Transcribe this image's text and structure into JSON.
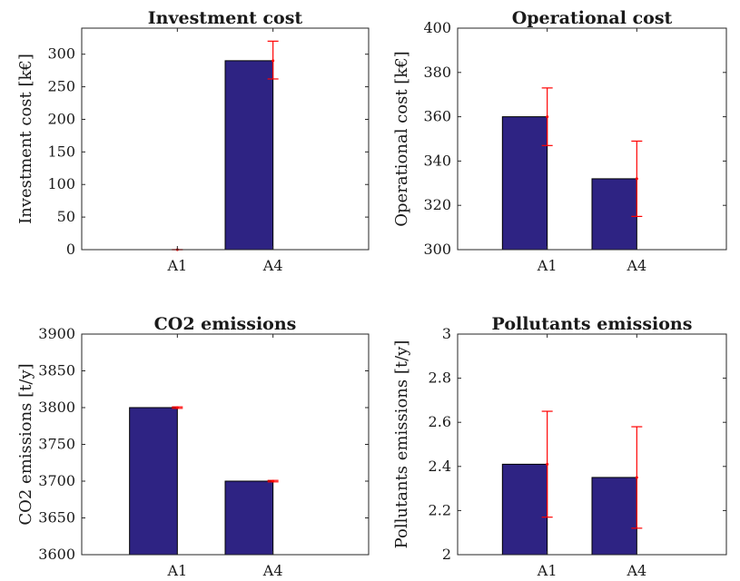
{
  "chart_data": [
    {
      "type": "bar",
      "title": "Investment cost",
      "ylabel": "Investment cost [k€]",
      "categories": [
        "A1",
        "A4"
      ],
      "values": [
        0,
        290
      ],
      "error_low": [
        0,
        262
      ],
      "error_high": [
        0,
        320
      ],
      "ylim": [
        0,
        340
      ],
      "yticks": [
        0,
        50,
        100,
        150,
        200,
        250,
        300
      ],
      "ytick_labels": [
        "0",
        "50",
        "100",
        "150",
        "200",
        "250",
        "300"
      ],
      "xlim": [
        0,
        3
      ],
      "grid": false
    },
    {
      "type": "bar",
      "title": "Operational cost",
      "ylabel": "Operational cost [k€]",
      "categories": [
        "A1",
        "A4"
      ],
      "values": [
        360,
        332
      ],
      "error_low": [
        347,
        315
      ],
      "error_high": [
        373,
        349
      ],
      "ylim": [
        300,
        400
      ],
      "yticks": [
        300,
        320,
        340,
        360,
        380,
        400
      ],
      "ytick_labels": [
        "300",
        "320",
        "340",
        "360",
        "380",
        "400"
      ],
      "xlim": [
        0,
        3
      ],
      "grid": false
    },
    {
      "type": "bar",
      "title": "CO2 emissions",
      "ylabel": "CO2 emissions [t/y]",
      "categories": [
        "A1",
        "A4"
      ],
      "values": [
        3800,
        3700
      ],
      "error_low": [
        3799,
        3699
      ],
      "error_high": [
        3801,
        3701
      ],
      "ylim": [
        3600,
        3900
      ],
      "yticks": [
        3600,
        3650,
        3700,
        3750,
        3800,
        3850,
        3900
      ],
      "ytick_labels": [
        "3600",
        "3650",
        "3700",
        "3750",
        "3800",
        "3850",
        "3900"
      ],
      "xlim": [
        0,
        3
      ],
      "grid": false
    },
    {
      "type": "bar",
      "title": "Pollutants emissions",
      "ylabel": "Pollutants emissions [t/y]",
      "categories": [
        "A1",
        "A4"
      ],
      "values": [
        2.41,
        2.35
      ],
      "error_low": [
        2.17,
        2.12
      ],
      "error_high": [
        2.65,
        2.58
      ],
      "ylim": [
        2,
        3
      ],
      "yticks": [
        2,
        2.2,
        2.4,
        2.6,
        2.8,
        3
      ],
      "ytick_labels": [
        "2",
        "2.2",
        "2.4",
        "2.6",
        "2.8",
        "3"
      ],
      "xlim": [
        0,
        3
      ],
      "grid": false
    }
  ],
  "colors": {
    "bar": "#2e2383",
    "error_bar": "#ff0000",
    "axis": "#262626"
  }
}
